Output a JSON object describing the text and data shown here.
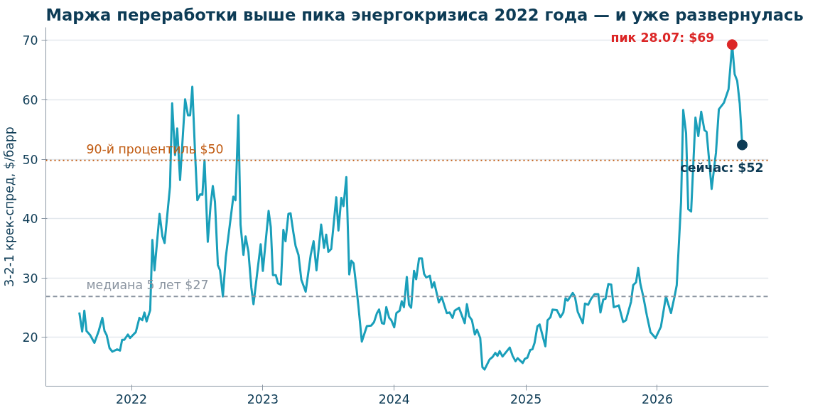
{
  "chart_data": {
    "type": "line",
    "title": "Маржа переработки выше пика энергокризиса 2022 года — и уже развернулась",
    "ylabel": "3-2-1 крек-спред, $/барр",
    "xlim": [
      "2021-05-08",
      "2026-11-06"
    ],
    "ylim": [
      11.8,
      72.2
    ],
    "xticks": [
      {
        "value": "2022-01-01",
        "label": "2022"
      },
      {
        "value": "2023-01-01",
        "label": "2023"
      },
      {
        "value": "2024-01-01",
        "label": "2024"
      },
      {
        "value": "2025-01-01",
        "label": "2025"
      },
      {
        "value": "2026-01-01",
        "label": "2026"
      }
    ],
    "yticks": [
      20,
      30,
      40,
      50,
      60,
      70
    ],
    "grid": "y",
    "line_style": "solid",
    "marker": "none",
    "x": [
      "2021-08-09",
      "2021-08-17",
      "2021-08-23",
      "2021-08-29",
      "2021-09-08",
      "2021-09-20",
      "2021-10-02",
      "2021-10-12",
      "2021-10-18",
      "2021-10-24",
      "2021-11-01",
      "2021-11-09",
      "2021-11-22",
      "2021-11-30",
      "2021-12-06",
      "2021-12-12",
      "2021-12-22",
      "2021-12-28",
      "2022-01-13",
      "2022-01-23",
      "2022-01-31",
      "2022-02-06",
      "2022-02-12",
      "2022-02-22",
      "2022-02-28",
      "2022-03-06",
      "2022-03-20",
      "2022-03-28",
      "2022-04-03",
      "2022-04-18",
      "2022-04-24",
      "2022-05-02",
      "2022-05-08",
      "2022-05-16",
      "2022-05-30",
      "2022-06-07",
      "2022-06-13",
      "2022-06-19",
      "2022-06-27",
      "2022-07-03",
      "2022-07-11",
      "2022-07-17",
      "2022-07-23",
      "2022-08-01",
      "2022-08-09",
      "2022-08-15",
      "2022-08-21",
      "2022-08-29",
      "2022-09-04",
      "2022-09-12",
      "2022-09-20",
      "2022-10-11",
      "2022-10-17",
      "2022-10-25",
      "2022-10-31",
      "2022-11-08",
      "2022-11-14",
      "2022-11-22",
      "2022-11-30",
      "2022-12-06",
      "2022-12-16",
      "2022-12-26",
      "2023-01-01",
      "2023-01-17",
      "2023-01-23",
      "2023-01-29",
      "2023-02-06",
      "2023-02-12",
      "2023-02-20",
      "2023-02-27",
      "2023-03-05",
      "2023-03-13",
      "2023-03-19",
      "2023-03-27",
      "2023-04-02",
      "2023-04-10",
      "2023-04-18",
      "2023-04-30",
      "2023-05-14",
      "2023-05-22",
      "2023-05-30",
      "2023-06-12",
      "2023-06-20",
      "2023-06-26",
      "2023-07-02",
      "2023-07-10",
      "2023-07-24",
      "2023-07-30",
      "2023-08-07",
      "2023-08-13",
      "2023-08-21",
      "2023-08-29",
      "2023-09-04",
      "2023-09-10",
      "2023-09-18",
      "2023-09-24",
      "2023-10-03",
      "2023-10-17",
      "2023-10-29",
      "2023-11-06",
      "2023-11-14",
      "2023-11-20",
      "2023-11-28",
      "2023-12-04",
      "2023-12-10",
      "2023-12-18",
      "2023-12-24",
      "2024-01-01",
      "2024-01-07",
      "2024-01-16",
      "2024-01-22",
      "2024-01-28",
      "2024-02-05",
      "2024-02-11",
      "2024-02-17",
      "2024-02-25",
      "2024-03-02",
      "2024-03-10",
      "2024-03-18",
      "2024-03-24",
      "2024-03-30",
      "2024-04-09",
      "2024-04-15",
      "2024-04-21",
      "2024-05-04",
      "2024-05-12",
      "2024-05-26",
      "2024-06-03",
      "2024-06-11",
      "2024-06-17",
      "2024-06-29",
      "2024-07-15",
      "2024-07-21",
      "2024-07-27",
      "2024-08-04",
      "2024-08-12",
      "2024-08-18",
      "2024-08-27",
      "2024-09-02",
      "2024-09-08",
      "2024-09-22",
      "2024-09-30",
      "2024-10-08",
      "2024-10-14",
      "2024-10-20",
      "2024-10-28",
      "2024-11-17",
      "2024-11-25",
      "2024-12-03",
      "2024-12-09",
      "2024-12-23",
      "2024-12-29",
      "2025-01-05",
      "2025-01-13",
      "2025-01-19",
      "2025-01-25",
      "2025-02-02",
      "2025-02-08",
      "2025-02-24",
      "2025-03-02",
      "2025-03-10",
      "2025-03-16",
      "2025-03-28",
      "2025-04-07",
      "2025-04-15",
      "2025-04-21",
      "2025-04-27",
      "2025-05-11",
      "2025-05-17",
      "2025-05-25",
      "2025-06-08",
      "2025-06-14",
      "2025-06-23",
      "2025-07-01",
      "2025-07-11",
      "2025-07-21",
      "2025-07-27",
      "2025-08-04",
      "2025-08-10",
      "2025-08-18",
      "2025-08-26",
      "2025-09-02",
      "2025-09-16",
      "2025-09-28",
      "2025-10-06",
      "2025-10-20",
      "2025-10-26",
      "2025-11-03",
      "2025-11-09",
      "2025-11-15",
      "2025-11-23",
      "2025-12-03",
      "2025-12-13",
      "2025-12-27",
      "2026-01-11",
      "2026-01-25",
      "2026-02-08",
      "2026-02-18",
      "2026-02-24",
      "2026-03-08",
      "2026-03-14",
      "2026-03-22",
      "2026-03-28",
      "2026-04-05",
      "2026-04-17",
      "2026-04-25",
      "2026-05-03",
      "2026-05-12",
      "2026-05-18",
      "2026-06-01",
      "2026-06-13",
      "2026-06-21",
      "2026-07-05",
      "2026-07-18",
      "2026-07-28",
      "2026-08-04",
      "2026-08-11",
      "2026-08-18",
      "2026-08-25"
    ],
    "series": [
      {
        "color": "#1a9fba",
        "values": [
          24.2,
          21.0,
          24.5,
          21.1,
          20.4,
          19.1,
          21.1,
          23.3,
          21.1,
          20.4,
          18.2,
          17.6,
          18.0,
          17.8,
          19.6,
          19.6,
          20.5,
          19.9,
          20.9,
          23.3,
          22.9,
          24.2,
          22.7,
          24.6,
          36.4,
          31.3,
          40.8,
          37.0,
          35.9,
          45.4,
          59.4,
          50.7,
          55.2,
          46.5,
          60.1,
          57.4,
          57.4,
          62.2,
          50.5,
          43.1,
          44.1,
          44.0,
          49.8,
          36.1,
          42.4,
          45.5,
          42.8,
          32.2,
          31.3,
          26.9,
          33.5,
          43.7,
          43.1,
          57.4,
          39.0,
          33.9,
          37.0,
          34.4,
          28.4,
          25.6,
          30.7,
          35.7,
          31.2,
          41.3,
          38.6,
          30.5,
          30.5,
          29.1,
          28.9,
          38.1,
          36.2,
          40.8,
          40.9,
          37.6,
          35.4,
          33.9,
          29.7,
          27.7,
          33.9,
          36.2,
          31.3,
          39.0,
          35.1,
          37.3,
          34.4,
          34.9,
          43.6,
          38.0,
          43.5,
          42.1,
          47.0,
          30.6,
          32.9,
          32.5,
          28.4,
          25.0,
          19.3,
          21.9,
          22.0,
          22.6,
          24.1,
          24.7,
          22.4,
          22.3,
          25.1,
          23.3,
          22.9,
          21.7,
          24.1,
          24.5,
          26.1,
          25.1,
          30.2,
          25.5,
          25.0,
          31.2,
          29.8,
          33.3,
          33.3,
          30.7,
          30.1,
          30.4,
          28.4,
          29.3,
          25.9,
          26.8,
          24.1,
          24.2,
          23.3,
          24.5,
          25.0,
          22.4,
          25.6,
          23.6,
          22.9,
          20.5,
          21.3,
          19.9,
          15.0,
          14.6,
          16.3,
          16.7,
          17.4,
          16.9,
          17.7,
          16.8,
          18.3,
          16.9,
          16.0,
          16.5,
          15.7,
          16.4,
          16.6,
          17.9,
          18.0,
          19.1,
          21.9,
          22.2,
          18.5,
          22.9,
          23.4,
          24.7,
          24.6,
          23.4,
          24.2,
          26.6,
          26.2,
          27.5,
          26.9,
          24.3,
          22.4,
          25.7,
          25.5,
          26.5,
          27.3,
          27.3,
          24.2,
          26.4,
          26.5,
          29.0,
          28.9,
          25.1,
          25.4,
          22.6,
          22.9,
          26.0,
          28.8,
          29.3,
          31.7,
          29.0,
          26.9,
          23.7,
          20.9,
          19.9,
          21.8,
          26.9,
          24.1,
          26.9,
          28.8,
          42.8,
          58.3,
          54.4,
          41.6,
          41.2,
          57.0,
          53.9,
          58.0,
          54.9,
          54.6,
          45.0,
          51.1,
          58.4,
          59.5,
          61.8,
          69.3,
          64.3,
          63.2,
          59.4,
          52.4
        ]
      }
    ],
    "ref_lines": [
      {
        "axis": "y",
        "value": 49.8,
        "label": "90-й процентиль $50",
        "color": "#c05a10",
        "line_style": "dotted"
      },
      {
        "axis": "y",
        "value": 26.9,
        "label": "медиана 5 лет $27",
        "color": "#8a94a0",
        "line_style": "dashed"
      }
    ],
    "annotations": [
      {
        "text": "пик 28.07: $69",
        "x": "2026-07-28",
        "y": 69.3
      },
      {
        "text": "сейчас: $52",
        "x": "2026-08-25",
        "y": 52.4
      }
    ]
  }
}
